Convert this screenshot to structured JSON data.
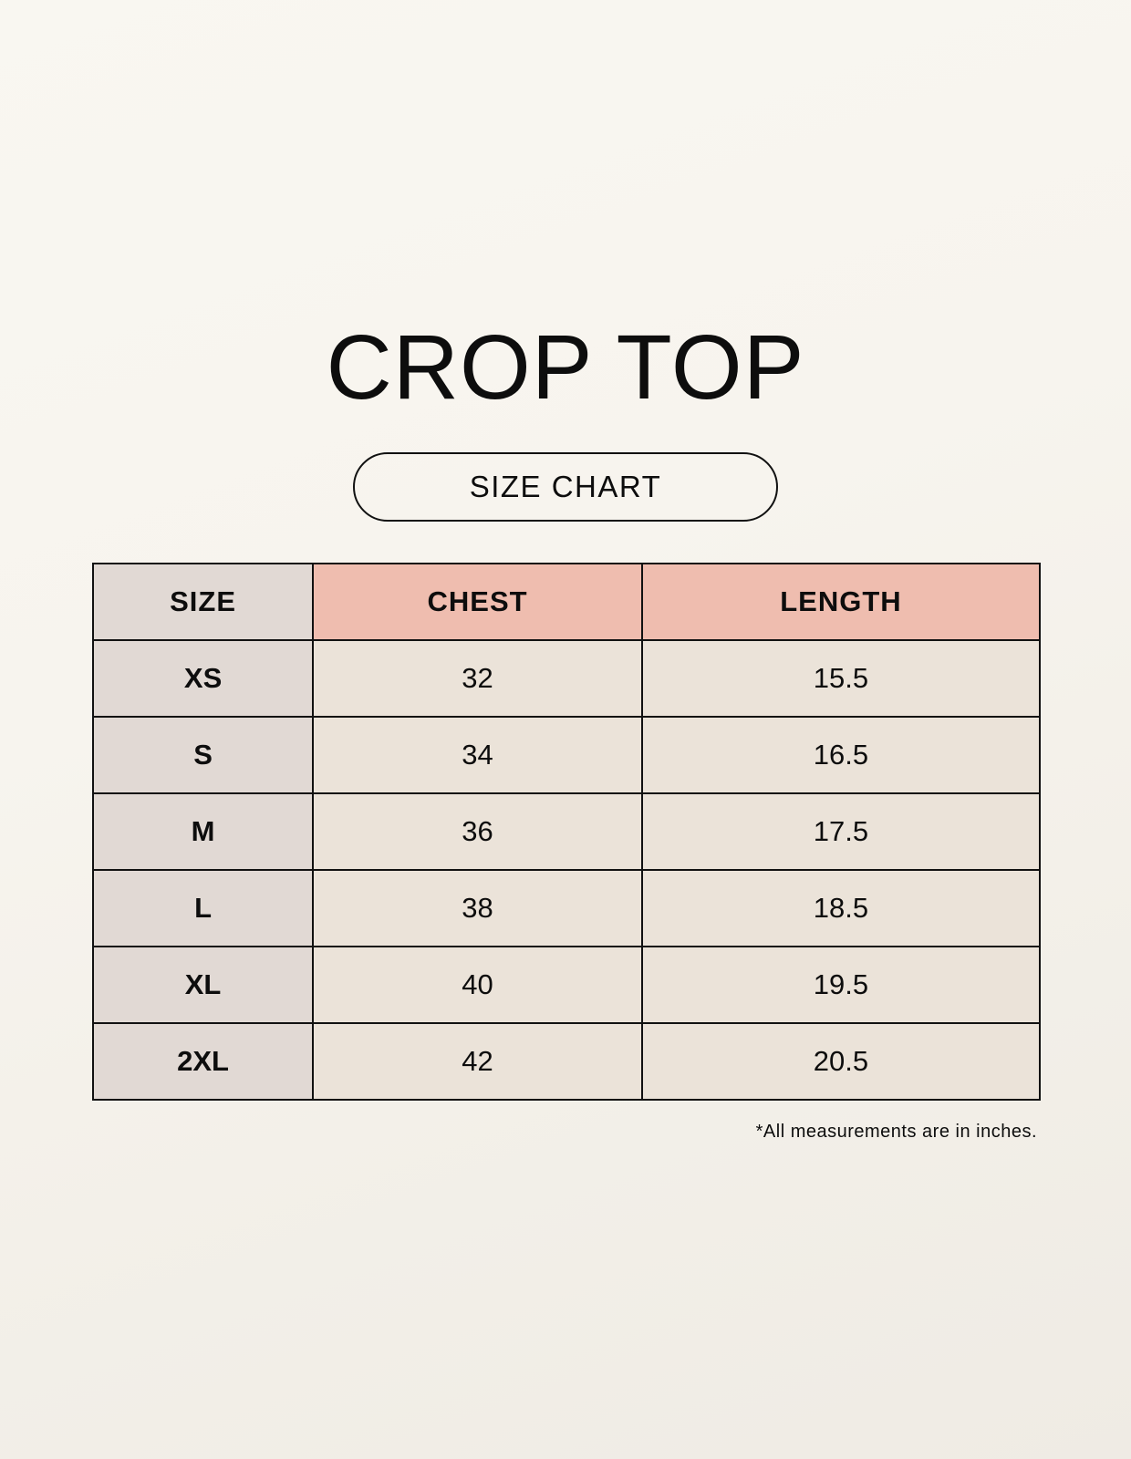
{
  "title": "CROP TOP",
  "subtitle": "SIZE CHART",
  "table": {
    "headers": [
      "SIZE",
      "CHEST",
      "LENGTH"
    ],
    "rows": [
      [
        "XS",
        "32",
        "15.5"
      ],
      [
        "S",
        "34",
        "16.5"
      ],
      [
        "M",
        "36",
        "17.5"
      ],
      [
        "L",
        "38",
        "18.5"
      ],
      [
        "XL",
        "40",
        "19.5"
      ],
      [
        "2XL",
        "42",
        "20.5"
      ]
    ]
  },
  "footnote": "*All measurements are in inches.",
  "colors": {
    "size_column": "#e1d9d4",
    "header_accent": "#efbdaf",
    "cell": "#ebe3d9"
  }
}
